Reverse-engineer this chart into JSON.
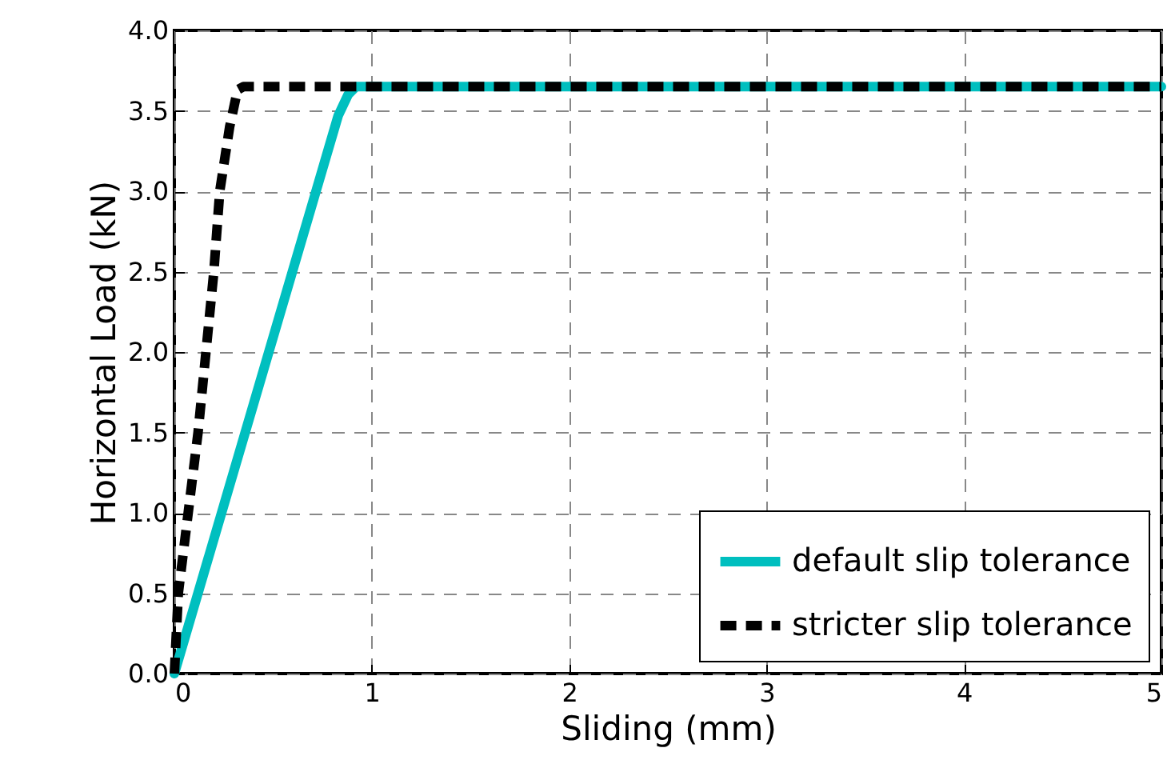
{
  "chart_data": {
    "type": "line",
    "xlabel": "Sliding (mm)",
    "ylabel": "Horizontal Load (kN)",
    "xlim": [
      0,
      5
    ],
    "xticks": [
      0,
      1,
      2,
      3,
      4,
      5
    ],
    "ylim": [
      0,
      4.0
    ],
    "yticks": [
      {
        "value": 0,
        "label": "0.0"
      },
      {
        "value": 0.5,
        "label": "0.5"
      },
      {
        "value": 1,
        "label": "1.0"
      },
      {
        "value": 1.5,
        "label": "1.5"
      },
      {
        "value": 2,
        "label": "2.0"
      },
      {
        "value": 2.5,
        "label": "2.5"
      },
      {
        "value": 3,
        "label": "3.0"
      },
      {
        "value": 3.5,
        "label": "3.5"
      },
      {
        "value": 4,
        "label": "4.0"
      }
    ],
    "grid": true,
    "legend": "bottom right",
    "series": [
      {
        "name": "default slip tolerance",
        "color": "#00bfbf",
        "line_style": "solid",
        "x": [
          0,
          0.83,
          0.88,
          0.92,
          5
        ],
        "values": [
          0,
          3.47,
          3.6,
          3.65,
          3.65
        ]
      },
      {
        "name": "stricter slip tolerance",
        "color": "#000000",
        "line_style": "dashed",
        "x": [
          0,
          0.02,
          0.07,
          0.12,
          0.16,
          0.2,
          0.23,
          0.28,
          0.32,
          0.35,
          5
        ],
        "values": [
          0,
          0.5,
          1.0,
          1.5,
          2.0,
          2.5,
          3.0,
          3.4,
          3.63,
          3.65,
          3.65
        ]
      }
    ]
  }
}
